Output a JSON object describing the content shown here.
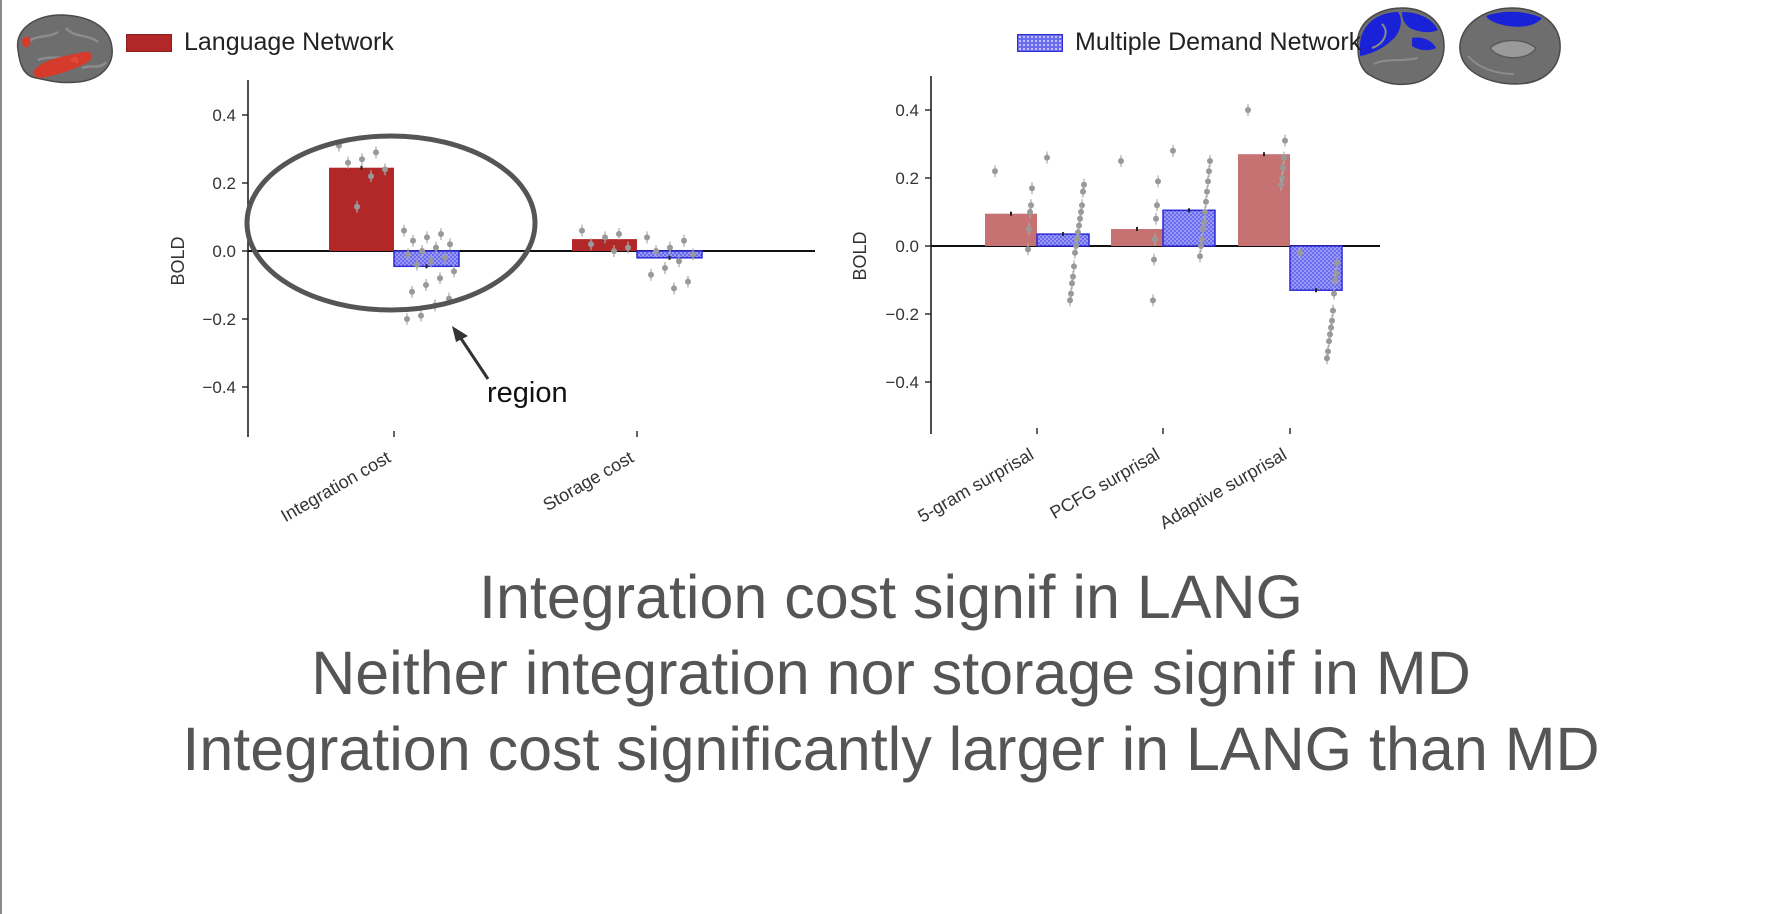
{
  "legend": {
    "language": "Language Network",
    "md": "Multiple Demand Network"
  },
  "colors": {
    "lang": "#b22828",
    "lang_light": "#c77272",
    "md": "#6b6bf0",
    "md_edge": "#2b2bd6",
    "points": "#999999",
    "caption": "#555555"
  },
  "icons": {
    "lang_brain": "brain-lateral-red-icon",
    "md_brain": "brain-lateral-blue-icon",
    "md_brain_medial": "brain-medial-blue-icon"
  },
  "annotation": {
    "label": "region",
    "shape": "ellipse",
    "arrow": "arrow-icon"
  },
  "captions": [
    "Integration cost signif in LANG",
    "Neither integration nor storage signif in MD",
    "Integration cost significantly larger in LANG than MD"
  ],
  "chart_data": [
    {
      "type": "bar",
      "ylabel": "BOLD",
      "ylim": [
        -0.55,
        0.5
      ],
      "yticks": [
        0.4,
        0.2,
        0.0,
        -0.2,
        -0.4
      ],
      "ytick_labels": [
        "0.4",
        "0.2",
        "0.0",
        "−0.2",
        "−0.4"
      ],
      "categories": [
        "Integration cost",
        "Storage cost"
      ],
      "series": [
        {
          "values": [
            0.245,
            0.035
          ],
          "color": "lang",
          "hatched": false
        },
        {
          "values": [
            -0.045,
            -0.02
          ],
          "color": "md",
          "hatched": true
        }
      ],
      "points": [
        [
          [
            0.31,
            0.29,
            0.27,
            0.26,
            0.24,
            0.22,
            0.13
          ],
          [
            0.06,
            0.05,
            0.04,
            0.03,
            0.02,
            0.01,
            0.0,
            -0.01,
            -0.02,
            -0.03,
            -0.04,
            -0.06,
            -0.08,
            -0.1,
            -0.12,
            -0.14,
            -0.16,
            -0.19,
            -0.2
          ]
        ],
        [
          [
            0.06,
            0.05,
            0.04,
            0.02,
            0.01,
            0.0
          ],
          [
            0.04,
            0.03,
            0.01,
            0.0,
            -0.01,
            -0.03,
            -0.05,
            -0.07,
            -0.09,
            -0.11
          ]
        ]
      ],
      "grid": false
    },
    {
      "type": "bar",
      "ylabel": "BOLD",
      "ylim": [
        -0.55,
        0.5
      ],
      "yticks": [
        0.4,
        0.2,
        0.0,
        -0.2,
        -0.4
      ],
      "ytick_labels": [
        "0.4",
        "0.2",
        "0.0",
        "−0.2",
        "−0.4"
      ],
      "categories": [
        "5-gram surprisal",
        "PCFG surprisal",
        "Adaptive surprisal"
      ],
      "series": [
        {
          "values": [
            0.095,
            0.05,
            0.27
          ],
          "color": "lang_light",
          "hatched": false
        },
        {
          "values": [
            0.035,
            0.105,
            -0.13
          ],
          "color": "md",
          "hatched": true
        }
      ],
      "points": [
        [
          [
            0.22,
            0.17,
            0.12,
            0.1,
            0.05,
            -0.01
          ],
          [
            0.26,
            0.18,
            0.16,
            0.12,
            0.1,
            0.08,
            0.06,
            0.04,
            0.02,
            0.0,
            -0.02,
            -0.06,
            -0.09,
            -0.11,
            -0.14,
            -0.16
          ]
        ],
        [
          [
            0.25,
            0.19,
            0.12,
            0.08,
            0.02,
            -0.04,
            -0.16
          ],
          [
            0.28,
            0.25,
            0.22,
            0.19,
            0.16,
            0.13,
            0.1,
            0.07,
            0.05,
            0.02,
            0.0,
            -0.03
          ]
        ],
        [
          [
            0.4,
            0.31,
            0.26,
            0.23,
            0.2,
            0.18
          ],
          [
            -0.02,
            -0.05,
            -0.08,
            -0.1,
            -0.14,
            -0.19,
            -0.22,
            -0.24,
            -0.26,
            -0.28,
            -0.31,
            -0.33
          ]
        ]
      ],
      "grid": false
    }
  ]
}
